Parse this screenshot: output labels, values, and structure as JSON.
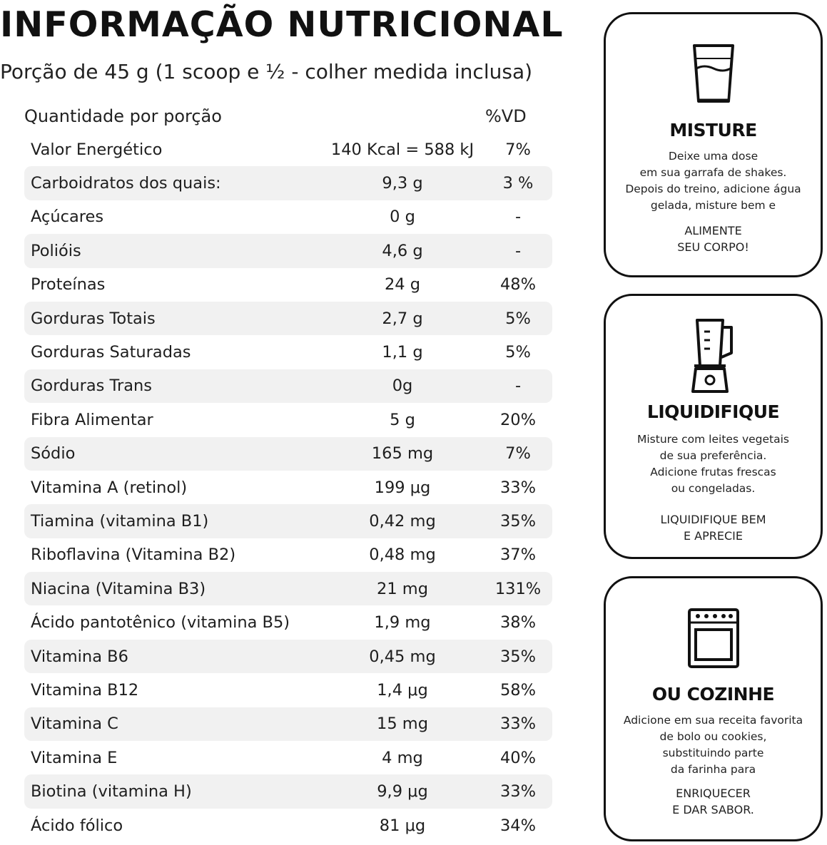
{
  "header": {
    "title": "INFORMAÇÃO NUTRICIONAL",
    "portion": "Porção de 45 g (1 scoop e ½ - colher medida inclusa)"
  },
  "table": {
    "col_qty": "Quantidade por porção",
    "col_vd": "%VD",
    "rows": [
      {
        "name": "Valor Energético",
        "amount": "140 Kcal = 588 kJ",
        "vd": "7%"
      },
      {
        "name": "Carboidratos dos quais:",
        "amount": "9,3 g",
        "vd": "3 %"
      },
      {
        "name": "Açúcares",
        "amount": "0 g",
        "vd": "-"
      },
      {
        "name": "Polióis",
        "amount": "4,6 g",
        "vd": "-"
      },
      {
        "name": "Proteínas",
        "amount": "24 g",
        "vd": "48%"
      },
      {
        "name": "Gorduras Totais",
        "amount": "2,7 g",
        "vd": "5%"
      },
      {
        "name": "Gorduras Saturadas",
        "amount": "1,1 g",
        "vd": "5%"
      },
      {
        "name": "Gorduras Trans",
        "amount": "0g",
        "vd": "-"
      },
      {
        "name": "Fibra Alimentar",
        "amount": "5 g",
        "vd": "20%"
      },
      {
        "name": "Sódio",
        "amount": "165 mg",
        "vd": "7%"
      },
      {
        "name": "Vitamina A (retinol)",
        "amount": "199 μg",
        "vd": "33%"
      },
      {
        "name": "Tiamina (vitamina B1)",
        "amount": "0,42 mg",
        "vd": "35%"
      },
      {
        "name": "Riboflavina (Vitamina B2)",
        "amount": "0,48 mg",
        "vd": "37%"
      },
      {
        "name": "Niacina (Vitamina B3)",
        "amount": "21 mg",
        "vd": "131%"
      },
      {
        "name": "Ácido pantotênico (vitamina B5)",
        "amount": "1,9 mg",
        "vd": "38%"
      },
      {
        "name": "Vitamina B6",
        "amount": "0,45 mg",
        "vd": "35%"
      },
      {
        "name": "Vitamina B12",
        "amount": "1,4 μg",
        "vd": "58%"
      },
      {
        "name": "Vitamina C",
        "amount": "15 mg",
        "vd": "33%"
      },
      {
        "name": "Vitamina E",
        "amount": "4 mg",
        "vd": "40%"
      },
      {
        "name": "Biotina (vitamina H)",
        "amount": "9,9 μg",
        "vd": "33%"
      },
      {
        "name": "Ácido fólico",
        "amount": "81 μg",
        "vd": "34%"
      }
    ]
  },
  "cards": [
    {
      "icon": "glass-icon",
      "title": "MISTURE",
      "text": [
        "Deixe uma dose",
        "em sua garrafa de shakes.",
        "Depois do treino, adicione água",
        "gelada, misture bem e"
      ],
      "cta": [
        "ALIMENTE",
        "SEU CORPO!"
      ]
    },
    {
      "icon": "blender-icon",
      "title": "LIQUIDIFIQUE",
      "text": [
        "Misture com leites vegetais",
        "de sua preferência.",
        "Adicione frutas frescas",
        "ou congeladas."
      ],
      "cta": [
        "LIQUIDIFIQUE BEM",
        "E APRECIE"
      ]
    },
    {
      "icon": "oven-icon",
      "title": "OU COZINHE",
      "text": [
        "Adicione em sua receita favorita",
        "de bolo ou cookies,",
        "substituindo parte",
        "da farinha para"
      ],
      "cta": [
        "ENRIQUECER",
        "E DAR SABOR."
      ]
    }
  ]
}
